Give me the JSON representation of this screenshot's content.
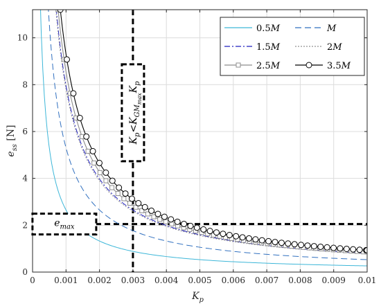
{
  "chart_data": {
    "type": "line",
    "title": "",
    "xlabel": "K_p",
    "ylabel": "e_ss  [N]",
    "xlim": [
      0,
      0.01
    ],
    "ylim": [
      0,
      11.2
    ],
    "xticks": [
      0,
      0.001,
      0.002,
      0.003,
      0.004,
      0.005,
      0.006,
      0.007,
      0.008,
      0.009,
      0.01
    ],
    "xtick_labels": [
      "0",
      "0.001",
      "0.002",
      "0.003",
      "0.004",
      "0.005",
      "0.006",
      "0.007",
      "0.008",
      "0.009",
      "0.01"
    ],
    "yticks": [
      0,
      2,
      4,
      6,
      8,
      10
    ],
    "ytick_labels": [
      "0",
      "2",
      "4",
      "6",
      "8",
      "10"
    ],
    "grid": true,
    "legend_position": "top-right",
    "curve_form": "y = c / x",
    "series": [
      {
        "name": "0.5M",
        "coef": 0.00265,
        "color": "#3cb6d8",
        "style": "solid",
        "marker": "none"
      },
      {
        "name": "M",
        "coef": 0.0053,
        "color": "#2f6fbf",
        "style": "dashed",
        "marker": "none"
      },
      {
        "name": "1.5M",
        "coef": 0.00795,
        "color": "#1f1fbf",
        "style": "dashdot",
        "marker": "none"
      },
      {
        "name": "2M",
        "coef": 0.0078,
        "color": "#909090",
        "style": "dotted",
        "marker": "none"
      },
      {
        "name": "2.5M",
        "coef": 0.00855,
        "color": "#8c8c8c",
        "style": "solid",
        "marker": "square"
      },
      {
        "name": "3.5M",
        "coef": 0.0093,
        "color": "#000000",
        "style": "solid",
        "marker": "circle"
      }
    ],
    "reference_lines": [
      {
        "orientation": "vertical",
        "x": 0.003,
        "color": "#000000"
      },
      {
        "orientation": "horizontal",
        "y": 2.05,
        "color": "#000000"
      }
    ],
    "annotations": {
      "emax": {
        "label_base": "e",
        "label_sub": "max",
        "x": 0.00095,
        "y": 2.05
      },
      "condition": {
        "label_base": "K",
        "label_sub": "p",
        "relation": "<",
        "label2_base": "K",
        "label2_sub": "GM",
        "label2_subsub": "max",
        "label3_base": "K",
        "label3_sub": "p",
        "x": 0.003,
        "y": 6.8
      }
    }
  }
}
